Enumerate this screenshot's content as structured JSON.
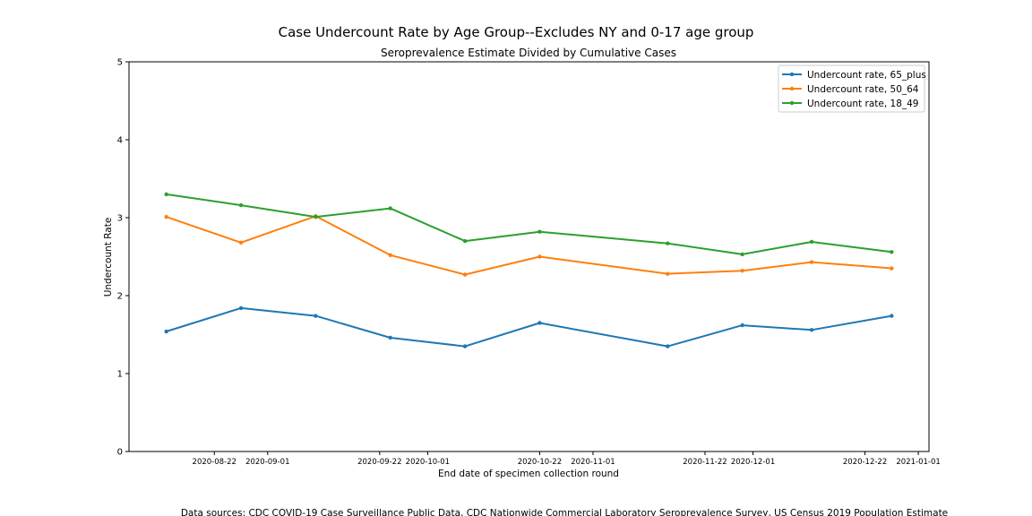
{
  "chart_data": {
    "type": "line",
    "title": "Case Undercount Rate by Age Group--Excludes NY and 0-17 age group",
    "subtitle": "Seroprevalence Estimate Divided by Cumulative Cases",
    "xlabel": "End date of specimen collection round",
    "ylabel": "Undercount Rate",
    "ylim": [
      0,
      5
    ],
    "yticks": [
      "0",
      "1",
      "2",
      "3",
      "4",
      "5"
    ],
    "xlim": [
      "2020-08-06",
      "2021-01-03"
    ],
    "xticks": [
      "2020-08-22",
      "2020-09-01",
      "2020-09-22",
      "2020-10-01",
      "2020-10-22",
      "2020-11-01",
      "2020-11-22",
      "2020-12-01",
      "2020-12-22",
      "2021-01-01"
    ],
    "legend_position": "top-right",
    "grid": false,
    "x": [
      "2020-08-13",
      "2020-08-27",
      "2020-09-10",
      "2020-09-24",
      "2020-10-08",
      "2020-10-22",
      "2020-11-15",
      "2020-11-29",
      "2020-12-12",
      "2020-12-27"
    ],
    "series": [
      {
        "name": "Undercount rate, 65_plus",
        "color": "#1f77b4",
        "values": [
          1.54,
          1.84,
          1.74,
          1.46,
          1.35,
          1.65,
          1.35,
          1.62,
          1.56,
          1.74
        ]
      },
      {
        "name": "Undercount rate, 50_64",
        "color": "#ff7f0e",
        "values": [
          3.01,
          2.68,
          3.02,
          2.52,
          2.27,
          2.5,
          2.28,
          2.32,
          2.43,
          2.35
        ]
      },
      {
        "name": "Undercount rate, 18_49",
        "color": "#2ca02c",
        "values": [
          3.3,
          3.16,
          3.01,
          3.12,
          2.7,
          2.82,
          2.67,
          2.53,
          2.69,
          2.56
        ]
      }
    ],
    "footnote": "Data sources: CDC COVID-19 Case Surveillance Public Data, CDC Nationwide Commercial Laboratory Seroprevalence Survey, US Census 2019 Population Estimate"
  }
}
